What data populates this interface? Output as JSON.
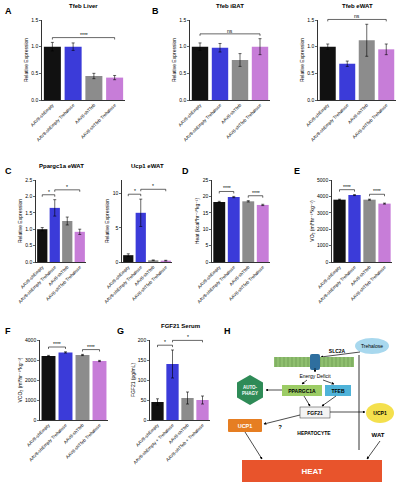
{
  "chart_data": [
    {
      "type": "bar",
      "panel": "A",
      "title": "Tfeb Liver",
      "y_label": "Relative Expression",
      "categories": [
        "AAV8-shEmpty",
        "AAV8-shEmpty Trehalose",
        "AAV8-shTfeb",
        "AAV8-shTfeb Trehalose"
      ],
      "values": [
        1.0,
        1.0,
        0.45,
        0.42
      ],
      "errors": [
        0.08,
        0.07,
        0.05,
        0.04
      ],
      "colors": [
        "#111111",
        "#3b3bd9",
        "#8c8c8c",
        "#c77dd8"
      ],
      "ylim": [
        0,
        1.5
      ],
      "yticks": [
        {
          "value": 0,
          "label": "0.0"
        },
        {
          "value": 0.5,
          "label": "0.5"
        },
        {
          "value": 1,
          "label": "1.0"
        },
        {
          "value": 1.5,
          "label": "1.5"
        }
      ],
      "grid": false,
      "annotations": [
        {
          "text": "****",
          "from": "AAV8-shEmpty",
          "to": "AAV8-shTfeb Trehalose"
        }
      ]
    },
    {
      "type": "bar",
      "panel": "B",
      "title": "Tfeb iBAT",
      "y_label": "Relative Expression",
      "categories": [
        "AAV8-shEmpty",
        "AAV8-shEmpty Trehalose",
        "AAV8-shTfeb",
        "AAV8-shTfeb Trehalose"
      ],
      "values": [
        1.0,
        0.98,
        0.75,
        1.0
      ],
      "errors": [
        0.07,
        0.08,
        0.12,
        0.15
      ],
      "colors": [
        "#111111",
        "#3b3bd9",
        "#8c8c8c",
        "#c77dd8"
      ],
      "ylim": [
        0,
        1.5
      ],
      "yticks": [
        {
          "value": 0,
          "label": "0.0"
        },
        {
          "value": 0.5,
          "label": "0.5"
        },
        {
          "value": 1,
          "label": "1.0"
        },
        {
          "value": 1.5,
          "label": "1.5"
        }
      ],
      "grid": false,
      "annotations": [
        {
          "text": "ns",
          "from": "AAV8-shEmpty",
          "to": "AAV8-shTfeb Trehalose"
        }
      ]
    },
    {
      "type": "bar",
      "title": "Tfeb eWAT",
      "y_label": "Relative Expression",
      "categories": [
        "AAV8-shEmpty",
        "AAV8-shEmpty Trehalose",
        "AAV8-shTfeb",
        "AAV8-shTfeb Trehalose"
      ],
      "values": [
        1.0,
        0.68,
        1.12,
        0.95
      ],
      "errors": [
        0.05,
        0.05,
        0.3,
        0.1
      ],
      "colors": [
        "#111111",
        "#3b3bd9",
        "#8c8c8c",
        "#c77dd8"
      ],
      "ylim": [
        0,
        1.5
      ],
      "yticks": [
        {
          "value": 0,
          "label": "0.0"
        },
        {
          "value": 0.5,
          "label": "0.5"
        },
        {
          "value": 1,
          "label": "1.0"
        },
        {
          "value": 1.5,
          "label": "1.5"
        }
      ],
      "grid": false,
      "annotations": [
        {
          "text": "ns",
          "from": "AAV8-shEmpty",
          "to": "AAV8-shTfeb Trehalose"
        }
      ]
    },
    {
      "type": "bar",
      "panel": "C",
      "title": "Ppargc1a eWAT",
      "y_label": "Relative Expression",
      "categories": [
        "AAV8-shEmpty",
        "AAV8-shEmpty Trehalose",
        "AAV8-shTfeb",
        "AAV8-shTfeb Trehalose"
      ],
      "values": [
        1.0,
        1.65,
        1.25,
        0.92
      ],
      "errors": [
        0.05,
        0.25,
        0.12,
        0.08
      ],
      "colors": [
        "#111111",
        "#3b3bd9",
        "#8c8c8c",
        "#c77dd8"
      ],
      "ylim": [
        0,
        2.5
      ],
      "yticks": [
        {
          "value": 0,
          "label": "0.0"
        },
        {
          "value": 0.5,
          "label": "0.5"
        },
        {
          "value": 1,
          "label": "1.0"
        },
        {
          "value": 1.5,
          "label": "1.5"
        },
        {
          "value": 2,
          "label": "2.0"
        },
        {
          "value": 2.5,
          "label": "2.5"
        }
      ],
      "grid": false,
      "annotations": [
        {
          "text": "*",
          "from": "AAV8-shEmpty",
          "to": "AAV8-shEmpty Trehalose"
        },
        {
          "text": "*",
          "from": "AAV8-shEmpty Trehalose",
          "to": "AAV8-shTfeb Trehalose"
        }
      ]
    },
    {
      "type": "bar",
      "title": "Ucp1 eWAT",
      "y_label": "Relative Expression",
      "categories": [
        "AAV8-shEmpty",
        "AAV8-shEmpty Trehalose",
        "AAV8-shTfeb",
        "AAV8-shTfeb Trehalose"
      ],
      "values": [
        1.0,
        7.2,
        0.25,
        0.2
      ],
      "errors": [
        0.2,
        2.0,
        0.05,
        0.05
      ],
      "colors": [
        "#111111",
        "#3b3bd9",
        "#8c8c8c",
        "#c77dd8"
      ],
      "ylim": [
        0,
        12
      ],
      "yticks": [
        0,
        5,
        10
      ],
      "grid": false,
      "annotations": [
        {
          "text": "*",
          "from": "AAV8-shEmpty",
          "to": "AAV8-shEmpty Trehalose"
        },
        {
          "text": "*",
          "from": "AAV8-shEmpty Trehalose",
          "to": "AAV8-shTfeb Trehalose"
        }
      ]
    },
    {
      "type": "bar",
      "panel": "D",
      "y_label": "Heat (kcal*hr⁻¹*kg⁻¹)",
      "categories": [
        "AAV8-shEmpty",
        "AAV8-shEmpty Trehalose",
        "AAV8-shTfeb",
        "AAV8-shTfeb Trehalose"
      ],
      "values": [
        18.3,
        19.8,
        18.5,
        17.4
      ],
      "errors": [
        0.2,
        0.2,
        0.2,
        0.2
      ],
      "colors": [
        "#111111",
        "#3b3bd9",
        "#8c8c8c",
        "#c77dd8"
      ],
      "ylim": [
        0,
        25
      ],
      "yticks": [
        0,
        5,
        10,
        15,
        20,
        25
      ],
      "grid": false,
      "annotations": [
        {
          "text": "****",
          "from": "AAV8-shEmpty",
          "to": "AAV8-shEmpty Trehalose"
        },
        {
          "text": "****",
          "from": "AAV8-shTfeb",
          "to": "AAV8-shTfeb Trehalose"
        }
      ]
    },
    {
      "type": "bar",
      "panel": "E",
      "y_label": "VO₂ (ml*hr⁻¹*kg⁻¹)",
      "categories": [
        "AAV8-shEmpty",
        "AAV8-shEmpty Trehalose",
        "AAV8-shTfeb",
        "AAV8-shTfeb Trehalose"
      ],
      "values": [
        3800,
        4080,
        3800,
        3560
      ],
      "errors": [
        30,
        30,
        30,
        30
      ],
      "colors": [
        "#111111",
        "#3b3bd9",
        "#8c8c8c",
        "#c77dd8"
      ],
      "ylim": [
        0,
        5000
      ],
      "yticks": [
        0,
        1000,
        2000,
        3000,
        4000,
        5000
      ],
      "grid": false,
      "annotations": [
        {
          "text": "****",
          "from": "AAV8-shEmpty",
          "to": "AAV8-shEmpty Trehalose"
        },
        {
          "text": "****",
          "from": "AAV8-shTfeb",
          "to": "AAV8-shTfeb Trehalose"
        }
      ]
    },
    {
      "type": "bar",
      "panel": "F",
      "y_label": "VCO₂ (ml*hr⁻¹*kg⁻¹)",
      "categories": [
        "AAV8-shEmpty",
        "AAV8-shEmpty Trehalose",
        "AAV8-shTfeb",
        "AAV8-shTfeb Trehalose"
      ],
      "values": [
        3200,
        3380,
        3250,
        2950
      ],
      "errors": [
        30,
        30,
        30,
        30
      ],
      "colors": [
        "#111111",
        "#3b3bd9",
        "#8c8c8c",
        "#c77dd8"
      ],
      "ylim": [
        0,
        4000
      ],
      "yticks": [
        0,
        1000,
        2000,
        3000,
        4000
      ],
      "grid": false,
      "annotations": [
        {
          "text": "****",
          "from": "AAV8-shEmpty",
          "to": "AAV8-shEmpty Trehalose"
        },
        {
          "text": "****",
          "from": "AAV8-shTfeb",
          "to": "AAV8-shTfeb Trehalose"
        }
      ]
    },
    {
      "type": "bar",
      "panel": "G",
      "title": "FGF21 Serum",
      "y_label": "FGF21 (pg/mL)",
      "categories": [
        "AAV8-shEmpty",
        "AAV8-shEmpty + Trehalose",
        "AAV8-shTfeb",
        "AAV8-shTfeb + Trehalose"
      ],
      "values": [
        45,
        140,
        55,
        50
      ],
      "errors": [
        8,
        35,
        15,
        10
      ],
      "colors": [
        "#111111",
        "#3b3bd9",
        "#8c8c8c",
        "#c77dd8"
      ],
      "ylim": [
        0,
        200
      ],
      "yticks": [
        0,
        50,
        100,
        150,
        200
      ],
      "grid": false,
      "annotations": [
        {
          "text": "*",
          "from": "AAV8-shEmpty",
          "to": "AAV8-shEmpty + Trehalose"
        },
        {
          "text": "*",
          "from": "AAV8-shEmpty + Trehalose",
          "to": "AAV8-shTfeb + Trehalose"
        }
      ]
    }
  ],
  "diagram": {
    "panel": "H",
    "trehalose": "Trehalose",
    "transporter": "SLC2A",
    "energy": "Energy Deficit",
    "autophagy": "AUTO-PHAGY",
    "pgc": "PPARGC1A",
    "tfeb": "TFEB",
    "fgf21": "FGF21",
    "ucp1_liver": "UCP1",
    "unknown": "?",
    "hepatocyte": "HEPATOCYTE",
    "wat": "WAT",
    "ucp1_wat": "UCP1",
    "heat": "HEAT"
  }
}
